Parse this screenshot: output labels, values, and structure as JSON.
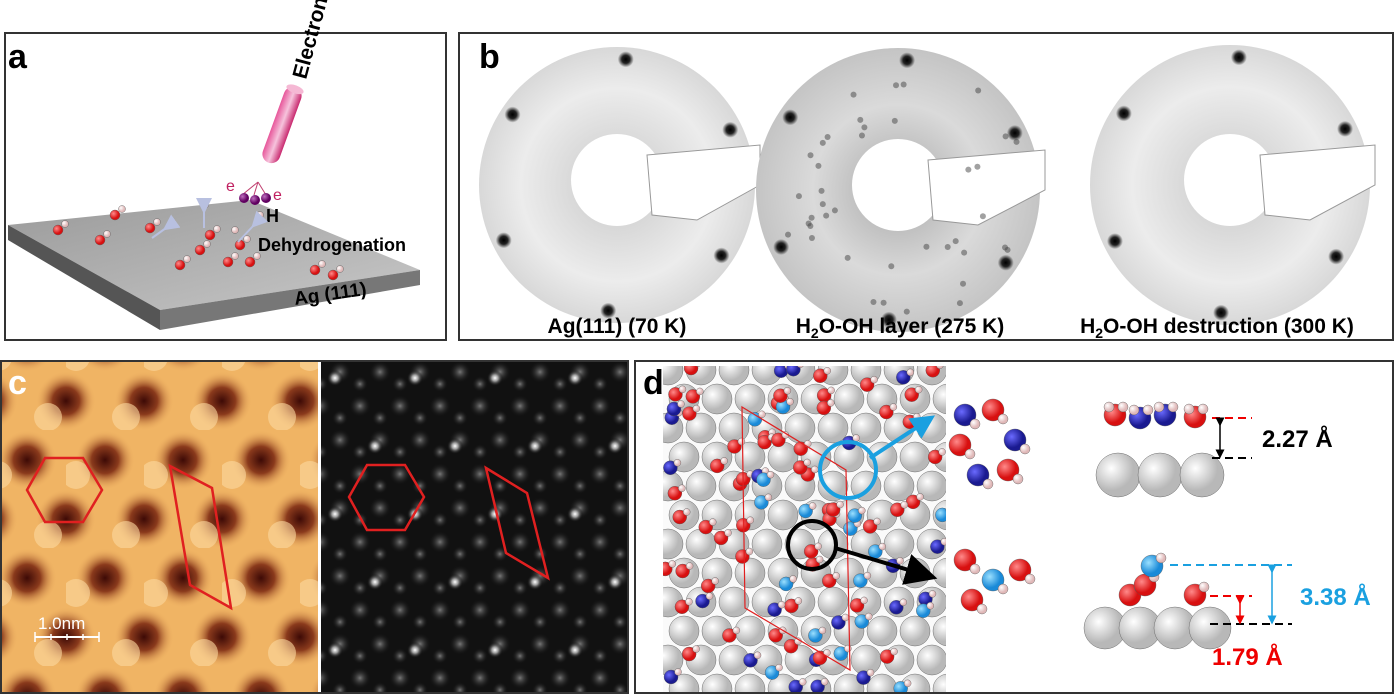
{
  "panels": {
    "a": {
      "label": "a",
      "beam": "Electron beam",
      "electron_left": "e",
      "electron_right": "e",
      "hydrogen": "H",
      "process": "Dehydrogenation",
      "surface": "Ag (111)"
    },
    "b": {
      "label": "b",
      "captions": [
        {
          "text": "Ag(111) (70 K)"
        },
        {
          "prefix": "H",
          "sub": "2",
          "rest": "O-OH layer (275 K)"
        },
        {
          "prefix": "H",
          "sub": "2",
          "rest": "O-OH destruction (300 K)"
        }
      ]
    },
    "c": {
      "label": "c",
      "scale_bar": "1.0nm"
    },
    "d": {
      "label": "d",
      "height_top": "2.27 Å",
      "height_total": "3.38 Å",
      "height_bottom": "1.79 Å"
    }
  }
}
